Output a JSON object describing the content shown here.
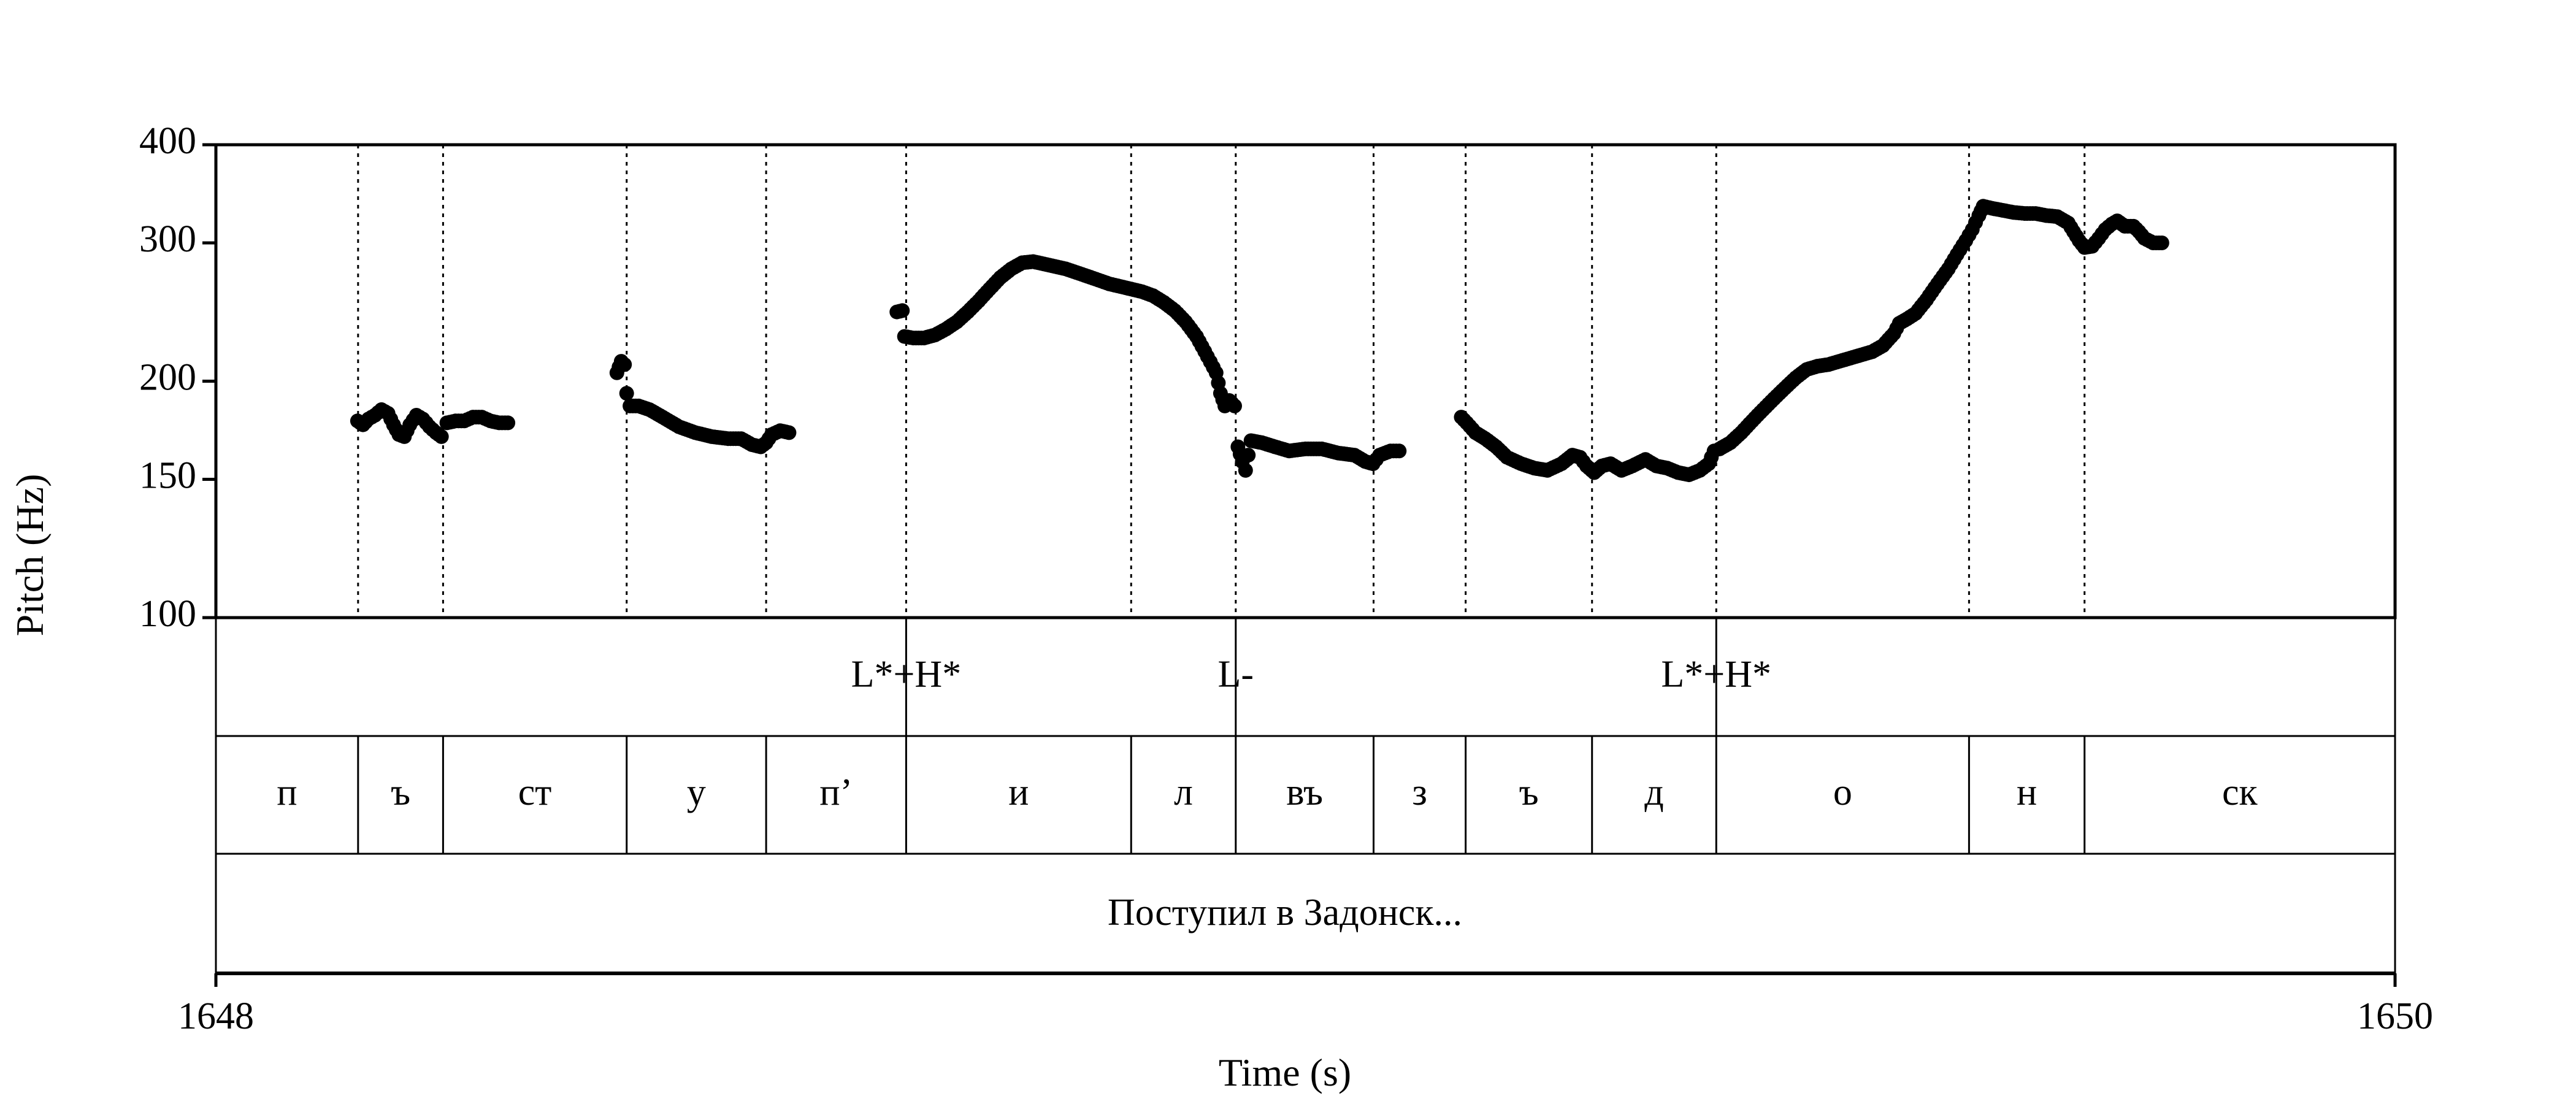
{
  "chart_data": {
    "type": "scatter",
    "xlabel": "Time (s)",
    "ylabel": "Pitch (Hz)",
    "xlim": [
      1648,
      1650
    ],
    "ylim": [
      100,
      400
    ],
    "y_scale": "log",
    "y_ticks": [
      100,
      150,
      200,
      300,
      400
    ],
    "x_ticks": [
      1648,
      1650
    ],
    "x_tick_labels": [
      "1648",
      "1650"
    ],
    "y_tick_labels": [
      "100",
      "150",
      "200",
      "300",
      "400"
    ],
    "boundaries": [
      1648.1305,
      1648.2085,
      1648.377,
      1648.505,
      1648.6335,
      1648.84,
      1648.936,
      1649.0625,
      1649.147,
      1649.263,
      1649.377,
      1649.609,
      1649.715
    ],
    "tones": [
      {
        "label": "L*+H*",
        "t": 1648.6335
      },
      {
        "label": "L-",
        "t": 1648.936
      },
      {
        "label": "L*+H*",
        "t": 1649.377
      }
    ],
    "segments": [
      {
        "label": "п",
        "start": 1648.0,
        "end": 1648.1305
      },
      {
        "label": "ъ",
        "start": 1648.1305,
        "end": 1648.2085
      },
      {
        "label": "ст",
        "start": 1648.2085,
        "end": 1648.377
      },
      {
        "label": "у",
        "start": 1648.377,
        "end": 1648.505
      },
      {
        "label": "п’",
        "start": 1648.505,
        "end": 1648.6335
      },
      {
        "label": "и",
        "start": 1648.6335,
        "end": 1648.84
      },
      {
        "label": "л",
        "start": 1648.84,
        "end": 1648.936
      },
      {
        "label": "въ",
        "start": 1648.936,
        "end": 1649.0625
      },
      {
        "label": "з",
        "start": 1649.0625,
        "end": 1649.147
      },
      {
        "label": "ъ",
        "start": 1649.147,
        "end": 1649.263
      },
      {
        "label": "д",
        "start": 1649.263,
        "end": 1649.377
      },
      {
        "label": "о",
        "start": 1649.377,
        "end": 1649.609
      },
      {
        "label": "н",
        "start": 1649.609,
        "end": 1649.715
      },
      {
        "label": "ск",
        "start": 1649.715,
        "end": 1650.0
      }
    ],
    "phrase": "Поступил в Задонск...",
    "pitch_contours": [
      [
        [
          1648.13,
          178
        ],
        [
          1648.135,
          176
        ],
        [
          1648.14,
          179
        ],
        [
          1648.146,
          181
        ],
        [
          1648.152,
          184
        ],
        [
          1648.158,
          182
        ],
        [
          1648.163,
          176
        ],
        [
          1648.168,
          171
        ],
        [
          1648.173,
          170
        ],
        [
          1648.178,
          176
        ],
        [
          1648.184,
          181
        ],
        [
          1648.19,
          179
        ],
        [
          1648.196,
          175
        ],
        [
          1648.202,
          172
        ],
        [
          1648.207,
          170
        ]
      ],
      [
        [
          1648.212,
          177
        ],
        [
          1648.22,
          178
        ],
        [
          1648.228,
          178
        ],
        [
          1648.236,
          180
        ],
        [
          1648.244,
          180
        ],
        [
          1648.252,
          178
        ],
        [
          1648.26,
          177
        ],
        [
          1648.268,
          177
        ]
      ],
      [
        [
          1648.368,
          205
        ],
        [
          1648.372,
          212
        ],
        [
          1648.375,
          210
        ],
        [
          1648.377,
          193
        ],
        [
          1648.38,
          186
        ],
        [
          1648.388,
          186
        ],
        [
          1648.398,
          184
        ],
        [
          1648.41,
          180
        ],
        [
          1648.425,
          175
        ],
        [
          1648.44,
          172
        ],
        [
          1648.455,
          170
        ],
        [
          1648.47,
          169
        ],
        [
          1648.482,
          169
        ],
        [
          1648.492,
          166
        ],
        [
          1648.5,
          165
        ],
        [
          1648.505,
          167
        ],
        [
          1648.51,
          171
        ],
        [
          1648.518,
          173
        ],
        [
          1648.526,
          172
        ]
      ],
      [
        [
          1648.625,
          245
        ],
        [
          1648.63,
          246
        ]
      ],
      [
        [
          1648.632,
          228
        ],
        [
          1648.64,
          227
        ],
        [
          1648.65,
          227
        ],
        [
          1648.66,
          229
        ],
        [
          1648.67,
          233
        ],
        [
          1648.68,
          238
        ],
        [
          1648.69,
          245
        ],
        [
          1648.7,
          253
        ],
        [
          1648.71,
          262
        ],
        [
          1648.72,
          271
        ],
        [
          1648.73,
          278
        ],
        [
          1648.74,
          283
        ],
        [
          1648.75,
          284
        ],
        [
          1648.76,
          282
        ],
        [
          1648.77,
          280
        ],
        [
          1648.78,
          278
        ],
        [
          1648.79,
          275
        ],
        [
          1648.8,
          272
        ],
        [
          1648.81,
          269
        ],
        [
          1648.82,
          266
        ],
        [
          1648.83,
          264
        ],
        [
          1648.84,
          262
        ],
        [
          1648.85,
          260
        ],
        [
          1648.86,
          257
        ],
        [
          1648.87,
          252
        ],
        [
          1648.88,
          246
        ],
        [
          1648.89,
          238
        ],
        [
          1648.9,
          228
        ],
        [
          1648.91,
          215
        ],
        [
          1648.918,
          205
        ],
        [
          1648.922,
          193
        ],
        [
          1648.926,
          186
        ],
        [
          1648.93,
          189
        ],
        [
          1648.935,
          186
        ]
      ],
      [
        [
          1648.938,
          165
        ],
        [
          1648.942,
          158
        ],
        [
          1648.945,
          154
        ],
        [
          1648.95,
          168
        ],
        [
          1648.96,
          167
        ],
        [
          1648.972,
          165
        ],
        [
          1648.985,
          163
        ],
        [
          1649.0,
          164
        ],
        [
          1649.015,
          164
        ],
        [
          1649.03,
          162
        ],
        [
          1649.045,
          161
        ],
        [
          1649.055,
          158
        ],
        [
          1649.062,
          157
        ],
        [
          1649.068,
          161
        ],
        [
          1649.078,
          163
        ],
        [
          1649.086,
          163
        ]
      ],
      [
        [
          1649.143,
          180
        ],
        [
          1649.148,
          177
        ],
        [
          1649.156,
          172
        ],
        [
          1649.165,
          169
        ],
        [
          1649.175,
          165
        ],
        [
          1649.185,
          160
        ],
        [
          1649.198,
          157
        ],
        [
          1649.21,
          155
        ],
        [
          1649.222,
          154
        ],
        [
          1649.235,
          157
        ],
        [
          1649.245,
          161
        ],
        [
          1649.252,
          160
        ],
        [
          1649.258,
          156
        ],
        [
          1649.265,
          153
        ],
        [
          1649.272,
          156
        ],
        [
          1649.28,
          157
        ],
        [
          1649.29,
          154
        ],
        [
          1649.3,
          156
        ],
        [
          1649.312,
          159
        ],
        [
          1649.322,
          156
        ],
        [
          1649.332,
          155
        ],
        [
          1649.342,
          153
        ],
        [
          1649.352,
          152
        ],
        [
          1649.362,
          154
        ],
        [
          1649.37,
          157
        ],
        [
          1649.375,
          163
        ]
      ],
      [
        [
          1649.38,
          164
        ],
        [
          1649.39,
          167
        ],
        [
          1649.4,
          172
        ],
        [
          1649.41,
          178
        ],
        [
          1649.42,
          184
        ],
        [
          1649.43,
          190
        ],
        [
          1649.44,
          196
        ],
        [
          1649.45,
          202
        ],
        [
          1649.46,
          207
        ],
        [
          1649.47,
          209
        ],
        [
          1649.48,
          210
        ],
        [
          1649.49,
          212
        ],
        [
          1649.5,
          214
        ],
        [
          1649.51,
          216
        ],
        [
          1649.52,
          218
        ],
        [
          1649.53,
          222
        ],
        [
          1649.54,
          230
        ],
        [
          1649.545,
          237
        ],
        [
          1649.552,
          240
        ],
        [
          1649.56,
          244
        ],
        [
          1649.57,
          254
        ],
        [
          1649.58,
          266
        ],
        [
          1649.59,
          278
        ],
        [
          1649.598,
          290
        ],
        [
          1649.606,
          302
        ],
        [
          1649.612,
          312
        ],
        [
          1649.618,
          325
        ],
        [
          1649.622,
          334
        ],
        [
          1649.63,
          332
        ],
        [
          1649.64,
          330
        ],
        [
          1649.65,
          328
        ],
        [
          1649.66,
          327
        ],
        [
          1649.67,
          327
        ],
        [
          1649.68,
          325
        ],
        [
          1649.69,
          324
        ],
        [
          1649.7,
          318
        ],
        [
          1649.705,
          310
        ],
        [
          1649.71,
          302
        ],
        [
          1649.715,
          296
        ],
        [
          1649.722,
          297
        ],
        [
          1649.728,
          304
        ],
        [
          1649.734,
          312
        ],
        [
          1649.74,
          317
        ],
        [
          1649.745,
          320
        ],
        [
          1649.752,
          315
        ],
        [
          1649.76,
          315
        ],
        [
          1649.765,
          310
        ],
        [
          1649.77,
          304
        ],
        [
          1649.778,
          300
        ],
        [
          1649.786,
          300
        ]
      ]
    ]
  }
}
